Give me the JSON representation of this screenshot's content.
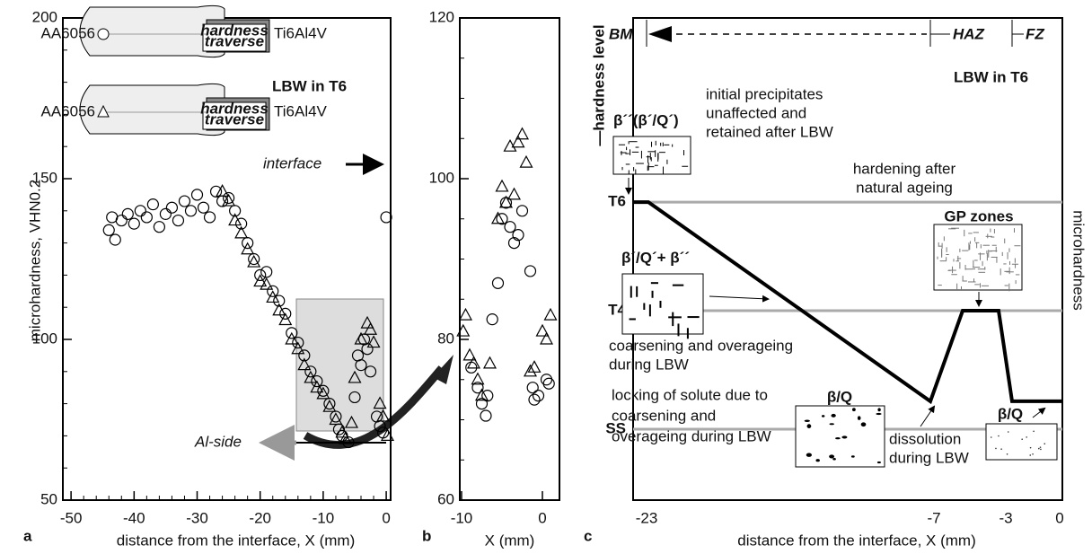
{
  "chart_data": [
    {
      "type": "scatter",
      "panel_label": "a",
      "y_label": "microhardness, VHN0.2",
      "x_label": "distance from the interface, X (mm)",
      "xlim": [
        -51.3,
        0.7
      ],
      "ylim": [
        50,
        200
      ],
      "xticks": [
        -50,
        -40,
        -30,
        -20,
        -10,
        0
      ],
      "yticks": [
        50,
        100,
        150,
        200
      ],
      "annotations": [
        "LBW in T6",
        "interface",
        "Al-side"
      ],
      "inset_labels": [
        [
          "AA6056"
        ],
        [
          "hardness",
          "traverse"
        ],
        [
          "Ti6Al4V"
        ],
        [
          "AA6056"
        ],
        [
          "hardness",
          "traverse"
        ],
        [
          "Ti6Al4V"
        ]
      ],
      "series": [
        {
          "marker": "circle",
          "color": "#000000",
          "x": [
            -44,
            -43.5,
            -43,
            -42,
            -41,
            -40,
            -39,
            -38,
            -37,
            -36,
            -35,
            -34,
            -33,
            -32,
            -31,
            -30,
            -29,
            -28,
            -27,
            -26,
            -25,
            -24,
            -23,
            -22,
            -21,
            -20,
            -19,
            -18,
            -17,
            -16,
            -15,
            -14,
            -13,
            -12,
            -11,
            -10,
            -9,
            -8,
            -7.5,
            -7,
            -6,
            -5,
            -4.5,
            -4,
            -3.5,
            -3,
            -2.5,
            -1.5,
            -1,
            -0.5,
            0
          ],
          "values": [
            134,
            138,
            131,
            137,
            139,
            136,
            140,
            138,
            142,
            135,
            139,
            141,
            137,
            143,
            140,
            145,
            141,
            138,
            146,
            143,
            144,
            140,
            136,
            130,
            125,
            120,
            121,
            115,
            112,
            108,
            102,
            99,
            95,
            90,
            87,
            84,
            80,
            76,
            72,
            70,
            68,
            82,
            95,
            92,
            100,
            97,
            90,
            76,
            73,
            71,
            138
          ]
        },
        {
          "marker": "triangle",
          "color": "#000000",
          "x": [
            -26,
            -25,
            -24,
            -23,
            -22,
            -21,
            -20,
            -19,
            -18,
            -17,
            -16,
            -15,
            -14,
            -13,
            -12,
            -11,
            -10,
            -9,
            -8,
            -7,
            -6.5,
            -5.5,
            -5,
            -4,
            -3,
            -2.5,
            -2,
            -1,
            -0.5,
            0.2
          ],
          "values": [
            146,
            143,
            137,
            133,
            128,
            124,
            118,
            117,
            113,
            109,
            106,
            100,
            97,
            92,
            88,
            85,
            83,
            79,
            75,
            71,
            69,
            74,
            88,
            100,
            105,
            103,
            99,
            80,
            76,
            70
          ]
        }
      ]
    },
    {
      "type": "scatter",
      "panel_label": "b",
      "x_label": "X (mm)",
      "xlim": [
        -10.22,
        2.11
      ],
      "ylim": [
        60,
        120
      ],
      "xticks": [
        -10,
        0
      ],
      "yticks": [
        60,
        80,
        100,
        120
      ],
      "series": [
        {
          "marker": "circle",
          "color": "#000000",
          "x": [
            -8.8,
            -8,
            -7.5,
            -7,
            -6.8,
            -6.2,
            -5.5,
            -5,
            -4.5,
            -4,
            -3.5,
            -3,
            -2.5,
            -1.5,
            -1.2,
            -1,
            -0.5,
            0.5,
            0.8
          ],
          "values": [
            76.5,
            74,
            72,
            70.5,
            73,
            82.5,
            87,
            95,
            97,
            94,
            92,
            93,
            96,
            88.5,
            74,
            72.5,
            73,
            75,
            74.5
          ]
        },
        {
          "marker": "triangle",
          "color": "#000000",
          "x": [
            -9.8,
            -9.5,
            -9,
            -8.5,
            -8,
            -7.5,
            -6.5,
            -5.5,
            -5,
            -4.5,
            -4,
            -3.5,
            -3,
            -2.5,
            -2,
            -1.5,
            -1,
            0,
            0.5,
            1
          ],
          "values": [
            81,
            83,
            78,
            77,
            75,
            73,
            77,
            95,
            99,
            97,
            104,
            98,
            104.5,
            105.5,
            102,
            76,
            76.5,
            81,
            80,
            83
          ]
        }
      ]
    },
    {
      "type": "line",
      "panel_label": "c",
      "x_label": "distance from the interface, X (mm)",
      "y_label": "—hardness level",
      "y2_label": "microhardness",
      "xlim": [
        -23.75,
        0.15
      ],
      "ylim": [
        0,
        100
      ],
      "xticks": [
        -23,
        -7,
        -3,
        0
      ],
      "yticks": [
        {
          "value": 61.8,
          "label": "T6"
        },
        {
          "value": 39.3,
          "label": "T4"
        },
        {
          "value": 14.7,
          "label": "SS"
        }
      ],
      "grid": true,
      "zones": [
        "BM",
        "HAZ",
        "FZ"
      ],
      "annotations": [
        [
          "LBW in T6"
        ],
        [
          "β´´(β´/Q´)"
        ],
        [
          "initial precipitates",
          "unaffected and",
          "retained after LBW"
        ],
        [
          "hardening after",
          "natural ageing"
        ],
        [
          "GP zones"
        ],
        [
          "β´/Q´+ β´´"
        ],
        [
          "coarsening and overageing",
          "during LBW"
        ],
        [
          "locking of solute due to",
          "coarsening and",
          "overageing during LBW"
        ],
        [
          "β/Q"
        ],
        [
          "dissolution",
          "during LBW"
        ],
        [
          "β/Q"
        ]
      ],
      "series": [
        {
          "color": "#000000",
          "x": [
            -23.75,
            -22.9,
            -7.2,
            -5.4,
            -3.4,
            -2.65,
            0.15
          ],
          "values": [
            61.8,
            61.8,
            20.5,
            39.3,
            39.3,
            20.5,
            20.5
          ]
        }
      ]
    }
  ]
}
